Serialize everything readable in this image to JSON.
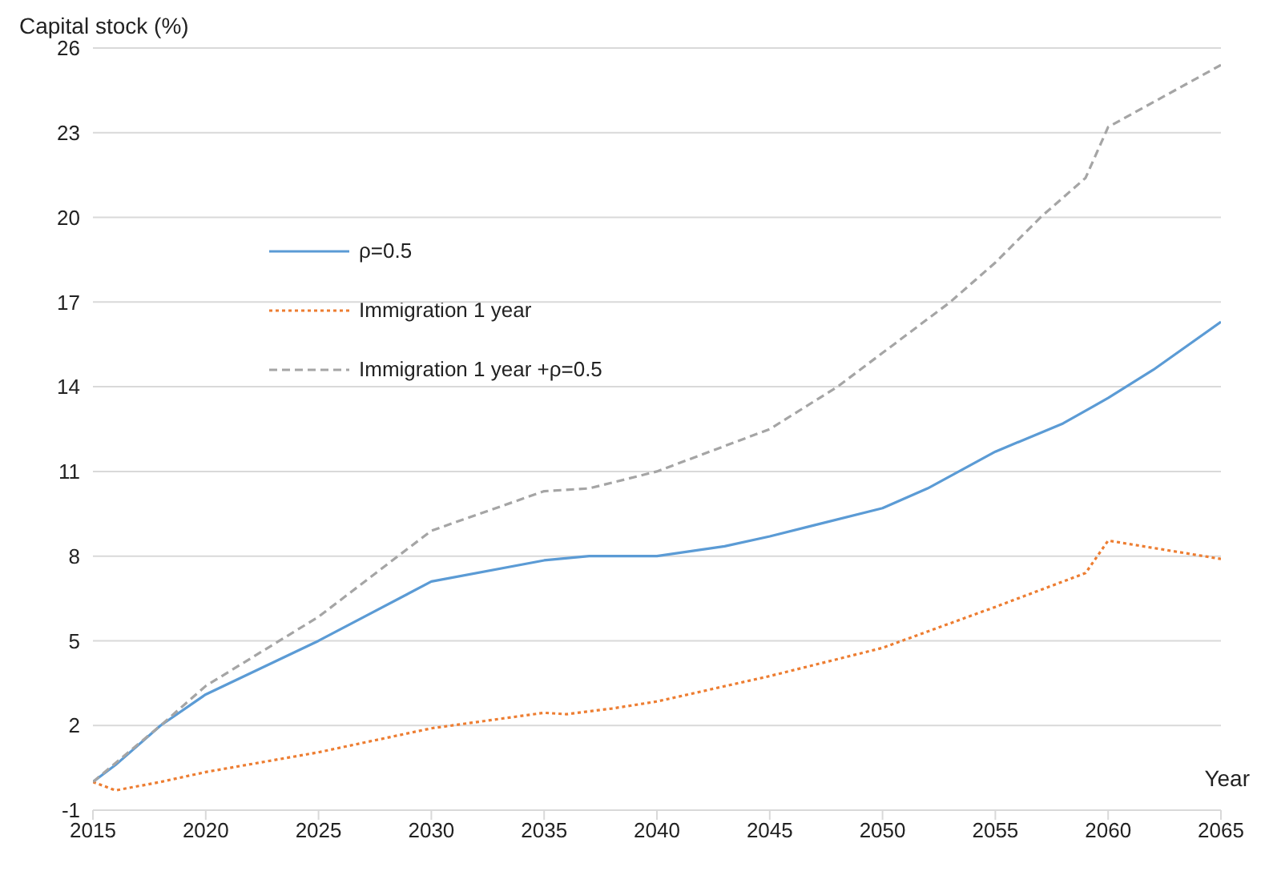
{
  "chart_data": {
    "type": "line",
    "ylabel": "Capital stock (%)",
    "xlabel": "Year",
    "xlim": [
      2015,
      2065
    ],
    "xticks": [
      2015,
      2020,
      2025,
      2030,
      2035,
      2040,
      2045,
      2050,
      2055,
      2060,
      2065
    ],
    "ylim": [
      -1,
      26
    ],
    "yticks": [
      -1,
      2,
      5,
      8,
      11,
      14,
      17,
      20,
      23,
      26
    ],
    "grid": "y",
    "legend": "top left",
    "marker": "none",
    "series": [
      {
        "name": "ρ=0.5",
        "color": "#5b9bd5",
        "line_style": "solid",
        "x": [
          2015,
          2016,
          2018,
          2020,
          2025,
          2030,
          2035,
          2037,
          2040,
          2043,
          2045,
          2047,
          2050,
          2052,
          2055,
          2058,
          2060,
          2062,
          2065
        ],
        "values": [
          0,
          0.6,
          2,
          3.1,
          5.0,
          7.1,
          7.85,
          8.0,
          8.0,
          8.35,
          8.7,
          9.1,
          9.7,
          10.4,
          11.7,
          12.7,
          13.6,
          14.6,
          16.3
        ]
      },
      {
        "name": "Immigration 1 year",
        "color": "#ed7d31",
        "line_style": "dotted",
        "x": [
          2015,
          2016,
          2018,
          2020,
          2025,
          2030,
          2035,
          2036,
          2038,
          2040,
          2045,
          2050,
          2055,
          2059,
          2060,
          2065
        ],
        "values": [
          0,
          -0.3,
          0,
          0.35,
          1.05,
          1.9,
          2.45,
          2.4,
          2.6,
          2.85,
          3.75,
          4.75,
          6.2,
          7.4,
          8.55,
          7.9
        ]
      },
      {
        "name": "Immigration 1 year +ρ=0.5",
        "color": "#a5a5a5",
        "line_style": "dashed",
        "x": [
          2015,
          2018,
          2020,
          2025,
          2030,
          2035,
          2037,
          2040,
          2042,
          2045,
          2048,
          2050,
          2053,
          2055,
          2057,
          2059,
          2060,
          2065
        ],
        "values": [
          0,
          2,
          3.4,
          5.85,
          8.9,
          10.3,
          10.4,
          11.0,
          11.6,
          12.5,
          14.0,
          15.2,
          17.0,
          18.4,
          20.0,
          21.4,
          23.2,
          25.4
        ]
      }
    ]
  }
}
